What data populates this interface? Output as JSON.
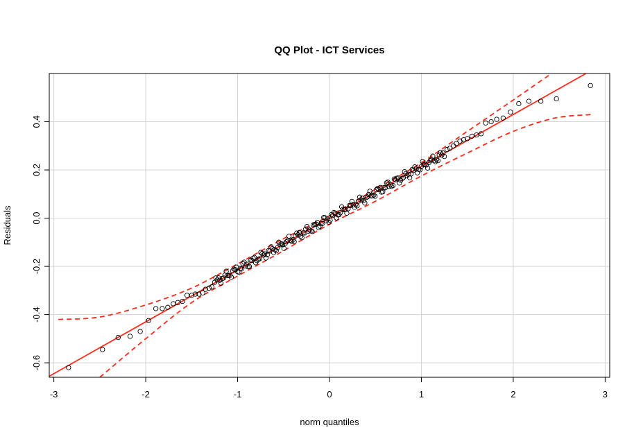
{
  "chart_data": {
    "type": "scatter",
    "title": "QQ Plot - ICT Services",
    "xlabel": "norm quantiles",
    "ylabel": "Residuals",
    "xlim": [
      -3.05,
      3.05
    ],
    "ylim": [
      -0.66,
      0.6
    ],
    "x_ticks": [
      -3,
      -2,
      -1,
      0,
      1,
      2,
      3
    ],
    "x_tick_labels": [
      "-3",
      "-2",
      "-1",
      "0",
      "1",
      "2",
      "3"
    ],
    "y_ticks": [
      -0.6,
      -0.4,
      -0.2,
      0.0,
      0.2,
      0.4
    ],
    "y_tick_labels": [
      "-0.6",
      "-0.4",
      "-0.2",
      "0.0",
      "0.2",
      "0.4"
    ],
    "grid": true,
    "colors": {
      "reference_line": "#ff2a1a",
      "confidence_band": "#ff2a1a",
      "points": "#000000"
    },
    "reference_line": {
      "intercept": 0.0,
      "slope": 0.215
    },
    "confidence_band": {
      "upper": [
        [
          -2.95,
          -0.42
        ],
        [
          -2.5,
          -0.41
        ],
        [
          -2.0,
          -0.36
        ],
        [
          -1.5,
          -0.29
        ],
        [
          -1.0,
          -0.19
        ],
        [
          -0.5,
          -0.085
        ],
        [
          0.0,
          0.01
        ],
        [
          0.5,
          0.12
        ],
        [
          1.0,
          0.23
        ],
        [
          1.5,
          0.36
        ],
        [
          2.0,
          0.49
        ],
        [
          2.5,
          0.62
        ],
        [
          2.85,
          0.69
        ]
      ],
      "lower": [
        [
          -2.5,
          -0.66
        ],
        [
          -2.0,
          -0.5
        ],
        [
          -1.5,
          -0.35
        ],
        [
          -1.0,
          -0.24
        ],
        [
          -0.5,
          -0.135
        ],
        [
          0.0,
          -0.025
        ],
        [
          0.5,
          0.07
        ],
        [
          1.0,
          0.175
        ],
        [
          1.5,
          0.27
        ],
        [
          2.0,
          0.36
        ],
        [
          2.45,
          0.415
        ],
        [
          2.85,
          0.43
        ]
      ]
    },
    "special_points": [
      [
        -2.84,
        -0.62
      ],
      [
        -2.47,
        -0.545
      ],
      [
        -2.3,
        -0.495
      ],
      [
        -2.17,
        -0.49
      ],
      [
        -2.06,
        -0.47
      ],
      [
        -1.97,
        -0.425
      ],
      [
        -1.89,
        -0.375
      ],
      [
        -1.82,
        -0.375
      ],
      [
        -1.76,
        -0.37
      ],
      [
        -1.7,
        -0.355
      ],
      [
        -1.65,
        -0.35
      ],
      [
        -1.6,
        -0.345
      ],
      [
        -1.55,
        -0.32
      ],
      [
        -1.5,
        -0.32
      ],
      [
        -1.46,
        -0.315
      ],
      [
        -1.42,
        -0.315
      ],
      [
        -1.38,
        -0.31
      ],
      [
        -1.35,
        -0.295
      ],
      [
        -1.31,
        -0.29
      ],
      [
        -1.28,
        -0.285
      ],
      [
        1.28,
        0.285
      ],
      [
        1.31,
        0.29
      ],
      [
        1.35,
        0.3
      ],
      [
        1.38,
        0.31
      ],
      [
        1.42,
        0.32
      ],
      [
        1.46,
        0.325
      ],
      [
        1.5,
        0.33
      ],
      [
        1.55,
        0.34
      ],
      [
        1.6,
        0.345
      ],
      [
        1.65,
        0.35
      ],
      [
        1.7,
        0.395
      ],
      [
        1.76,
        0.4
      ],
      [
        1.82,
        0.41
      ],
      [
        1.89,
        0.415
      ],
      [
        1.97,
        0.44
      ],
      [
        2.06,
        0.475
      ],
      [
        2.17,
        0.485
      ],
      [
        2.3,
        0.485
      ],
      [
        2.47,
        0.495
      ],
      [
        2.84,
        0.55
      ]
    ],
    "central_band": {
      "x_range": [
        -1.25,
        1.25
      ],
      "n_points": 180,
      "slope": 0.213,
      "intercept": 0.0
    }
  }
}
